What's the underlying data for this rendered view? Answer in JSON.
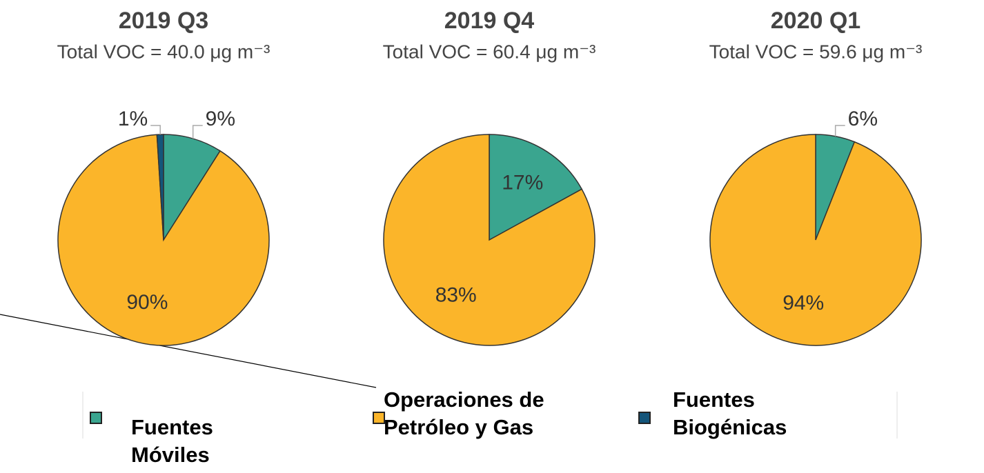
{
  "chart_data": [
    {
      "type": "pie",
      "title": "2019 Q3",
      "subtitle": "Total VOC = 40.0 μg m⁻³",
      "values": [
        9,
        90,
        1
      ],
      "value_labels": [
        "9%",
        "90%",
        "1%"
      ]
    },
    {
      "type": "pie",
      "title": "2019 Q4",
      "subtitle": "Total VOC = 60.4 μg m⁻³",
      "values": [
        17,
        83
      ],
      "value_labels": [
        "17%",
        "83%"
      ]
    },
    {
      "type": "pie",
      "title": "2020 Q1",
      "subtitle": "Total VOC = 59.6 μg m⁻³",
      "values": [
        6,
        94
      ],
      "value_labels": [
        "6%",
        "94%"
      ]
    }
  ],
  "legend": {
    "categories": [
      "Fuentes Móviles",
      "Operaciones de Petróleo y Gas",
      "Fuentes Biogénicas"
    ],
    "colors": [
      "#3aa58f",
      "#fbb52a",
      "#14557a"
    ]
  }
}
